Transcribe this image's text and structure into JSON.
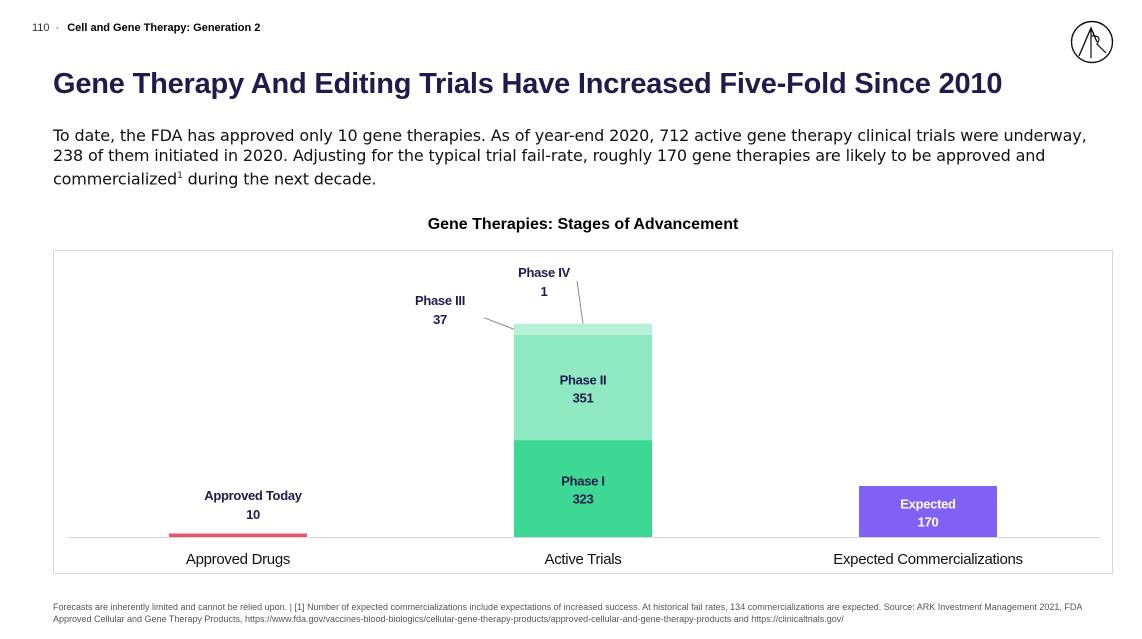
{
  "header": {
    "page_number": "110",
    "separator": "·",
    "section_title": "Cell and Gene Therapy: Generation 2"
  },
  "headline": "Gene Therapy And Editing Trials Have Increased Five-Fold Since 2010",
  "intro": {
    "text_before_sup": "To date, the FDA has approved only 10 gene therapies. As of year-end 2020, 712 active gene therapy clinical trials were underway, 238 of them initiated in 2020. Adjusting for the typical trial fail-rate, roughly 170 gene therapies are likely to be approved and commercialized",
    "superscript": "1",
    "text_after_sup": " during the next decade."
  },
  "chart_data": {
    "type": "bar",
    "stacked": true,
    "title": "Gene Therapies: Stages of Advancement",
    "xlabel": "",
    "ylabel": "",
    "ylim": [
      0,
      800
    ],
    "grid": false,
    "categories": [
      "Approved Drugs",
      "Active Trials",
      "Expected Commercializations"
    ],
    "series": [
      {
        "name": "Approved Today",
        "values": [
          10,
          0,
          0
        ],
        "color": "#e8546b"
      },
      {
        "name": "Phase I",
        "values": [
          0,
          323,
          0
        ],
        "color": "#3dd893"
      },
      {
        "name": "Phase II",
        "values": [
          0,
          351,
          0
        ],
        "color": "#8ee8c1"
      },
      {
        "name": "Phase III",
        "values": [
          0,
          37,
          0
        ],
        "color": "#b6f0d7"
      },
      {
        "name": "Phase IV",
        "values": [
          0,
          1,
          0
        ],
        "color": "#d9f8ea"
      },
      {
        "name": "Expected",
        "values": [
          0,
          0,
          170
        ],
        "color": "#8061f5"
      }
    ]
  },
  "footnote": "Forecasts are inherently limited and cannot be relied upon.  |  [1] Number of expected commercializations include expectations of increased success. At historical fail rates, 134 commercializations are expected.  Source: ARK Investment Management 2021, FDA Approved Cellular and Gene Therapy Products, https://www.fda.gov/vaccines-blood-biologics/cellular-gene-therapy-products/approved-cellular-and-gene-therapy-products and https://clinicaltrials.gov/",
  "colors": {
    "navy": "#1f1b4d",
    "axis": "#d6d6d6"
  },
  "icons": {
    "logo": "ark-logo-icon"
  }
}
